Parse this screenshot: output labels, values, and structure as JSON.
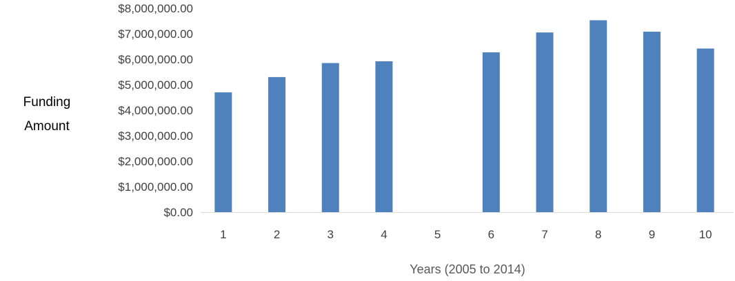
{
  "chart_data": {
    "type": "bar",
    "title": "",
    "xlabel": "Years (2005 to 2014)",
    "ylabel_lines": [
      "Funding",
      "Amount"
    ],
    "categories": [
      "1",
      "2",
      "3",
      "4",
      "5",
      "6",
      "7",
      "8",
      "9",
      "10"
    ],
    "values": [
      4700000,
      5300000,
      5850000,
      5920000,
      0,
      6270000,
      7050000,
      7530000,
      7080000,
      6420000
    ],
    "ylim": [
      0,
      8000000
    ],
    "y_ticks": [
      {
        "value": 0,
        "label": "$0.00"
      },
      {
        "value": 1000000,
        "label": "$1,000,000.00"
      },
      {
        "value": 2000000,
        "label": "$2,000,000.00"
      },
      {
        "value": 3000000,
        "label": "$3,000,000.00"
      },
      {
        "value": 4000000,
        "label": "$4,000,000.00"
      },
      {
        "value": 5000000,
        "label": "$5,000,000.00"
      },
      {
        "value": 6000000,
        "label": "$6,000,000.00"
      },
      {
        "value": 7000000,
        "label": "$7,000,000.00"
      },
      {
        "value": 8000000,
        "label": "$8,000,000.00"
      }
    ],
    "grid": false,
    "legend": "none",
    "bar_color": "#4f81bd",
    "axis_color": "#d9d9d9"
  }
}
